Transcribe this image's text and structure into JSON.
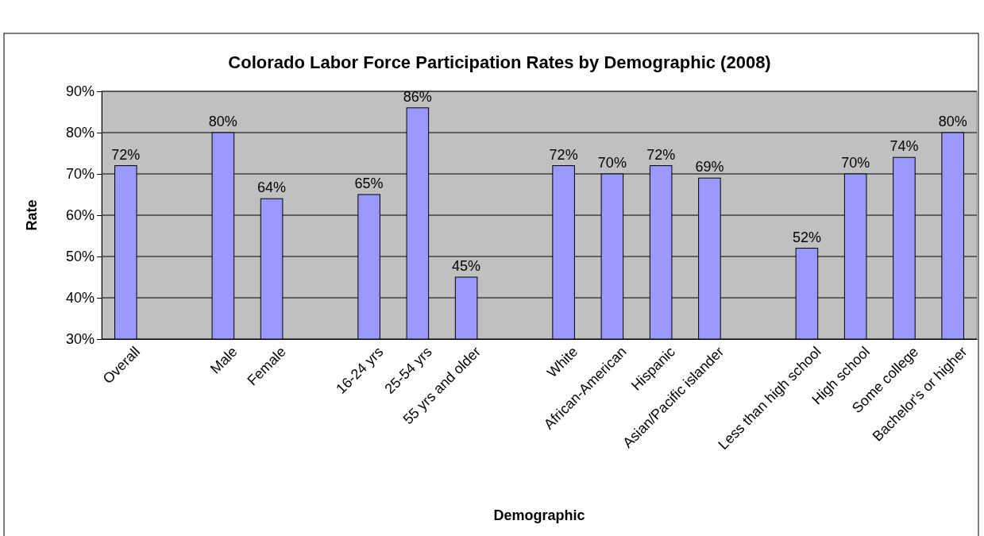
{
  "chart_data": {
    "type": "bar",
    "title": "Colorado Labor Force Participation Rates by Demographic (2008)",
    "xlabel": "Demographic",
    "ylabel": "Rate",
    "categories": [
      "Overall",
      null,
      "Male",
      "Female",
      null,
      "16-24 yrs",
      "25-54 yrs",
      "55 yrs and older",
      null,
      "White",
      "African-American",
      "Hispanic",
      "Asian/Pacific islander",
      null,
      "Less than high school",
      "High school",
      "Some college",
      "Bachelor's or higher"
    ],
    "values": [
      72,
      null,
      80,
      64,
      null,
      65,
      86,
      45,
      null,
      72,
      70,
      72,
      69,
      null,
      52,
      70,
      74,
      80
    ],
    "value_labels": [
      "72%",
      null,
      "80%",
      "64%",
      null,
      "65%",
      "86%",
      "45%",
      null,
      "72%",
      "70%",
      "72%",
      "69%",
      null,
      "52%",
      "70%",
      "74%",
      "80%"
    ],
    "color": "#9999ff",
    "ylim": [
      30,
      90
    ],
    "yticks": [
      {
        "value": 30,
        "label": "30%"
      },
      {
        "value": 40,
        "label": "40%"
      },
      {
        "value": 50,
        "label": "50%"
      },
      {
        "value": 60,
        "label": "60%"
      },
      {
        "value": 70,
        "label": "70%"
      },
      {
        "value": 80,
        "label": "80%"
      },
      {
        "value": 90,
        "label": "90%"
      }
    ],
    "grid": "y"
  }
}
